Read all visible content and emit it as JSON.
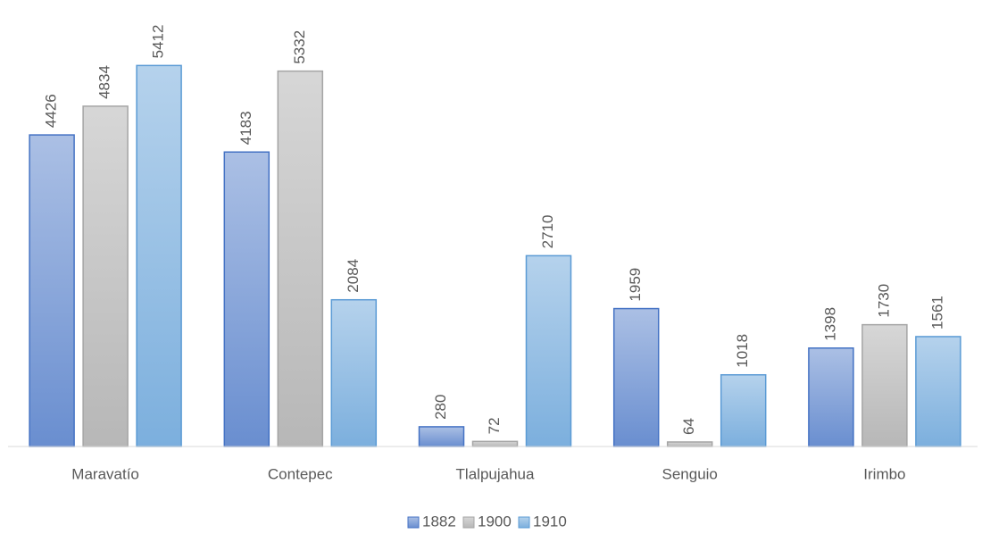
{
  "chart_data": {
    "type": "bar",
    "categories": [
      "Maravatío",
      "Contepec",
      "Tlalpujahua",
      "Senguio",
      "Irimbo"
    ],
    "series": [
      {
        "name": "1882",
        "color": "#4472c4",
        "values": [
          4426,
          4183,
          280,
          1959,
          1398
        ]
      },
      {
        "name": "1900",
        "color": "#a5a5a5",
        "values": [
          4834,
          5332,
          72,
          64,
          1730
        ]
      },
      {
        "name": "1910",
        "color": "#5b9bd5",
        "values": [
          5412,
          2084,
          2710,
          1018,
          1561
        ]
      }
    ],
    "ylim": [
      0,
      6000
    ],
    "legend": "bottom",
    "grid": false
  }
}
